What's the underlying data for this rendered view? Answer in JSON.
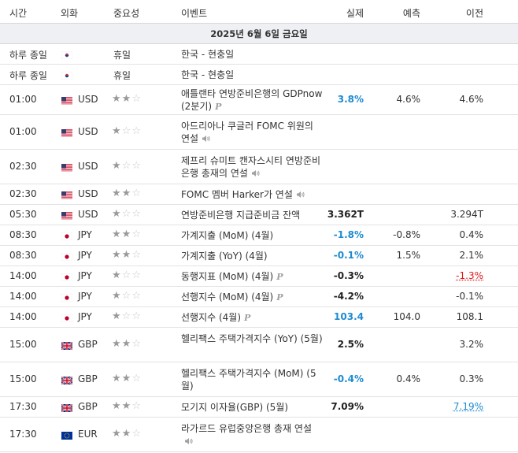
{
  "header": {
    "time": "시간",
    "currency": "외화",
    "importance": "중요성",
    "event": "이벤트",
    "actual": "실제",
    "forecast": "예측",
    "previous": "이전"
  },
  "date_label": "2025년 6월 6일 금요일",
  "rows": [
    {
      "time": "하루 종일",
      "flag": "kr-flag-icon",
      "currency": "",
      "holiday": "휴일",
      "stars": 0,
      "event": "한국 - 현충일",
      "marker": "",
      "actual": "",
      "actual_style": "",
      "forecast": "",
      "previous": "",
      "previous_style": ""
    },
    {
      "time": "하루 종일",
      "flag": "kr-flag-icon",
      "currency": "",
      "holiday": "휴일",
      "stars": 0,
      "event": "한국 - 현충일",
      "marker": "",
      "actual": "",
      "actual_style": "",
      "forecast": "",
      "previous": "",
      "previous_style": ""
    },
    {
      "time": "01:00",
      "flag": "us-flag-icon",
      "currency": "USD",
      "holiday": "",
      "stars": 2,
      "event": "애틀랜타 연방준비은행의 GDPnow (2분기)",
      "marker": "preliminary-icon",
      "actual": "3.8%",
      "actual_style": "up",
      "forecast": "4.6%",
      "previous": "4.6%",
      "previous_style": ""
    },
    {
      "time": "01:00",
      "flag": "us-flag-icon",
      "currency": "USD",
      "holiday": "",
      "stars": 1,
      "event": "아드리아나 쿠글러 FOMC 위원의 연설",
      "marker": "speaker-icon",
      "actual": "",
      "actual_style": "",
      "forecast": "",
      "previous": "",
      "previous_style": ""
    },
    {
      "time": "02:30",
      "flag": "us-flag-icon",
      "currency": "USD",
      "holiday": "",
      "stars": 1,
      "event": "제프리 슈미트 캔자스시티 연방준비은행 총재의 연설",
      "marker": "speaker-icon",
      "actual": "",
      "actual_style": "",
      "forecast": "",
      "previous": "",
      "previous_style": ""
    },
    {
      "time": "02:30",
      "flag": "us-flag-icon",
      "currency": "USD",
      "holiday": "",
      "stars": 2,
      "event": "FOMC 멤버 Harker가 연설",
      "marker": "speaker-icon",
      "actual": "",
      "actual_style": "",
      "forecast": "",
      "previous": "",
      "previous_style": ""
    },
    {
      "time": "05:30",
      "flag": "us-flag-icon",
      "currency": "USD",
      "holiday": "",
      "stars": 1,
      "event": "연방준비은행 지급준비금 잔액",
      "marker": "",
      "actual": "3.362T",
      "actual_style": "",
      "forecast": "",
      "previous": "3.294T",
      "previous_style": ""
    },
    {
      "time": "08:30",
      "flag": "jp-flag-icon",
      "currency": "JPY",
      "holiday": "",
      "stars": 2,
      "event": "가계지출 (MoM) (4월)",
      "marker": "",
      "actual": "-1.8%",
      "actual_style": "up",
      "forecast": "-0.8%",
      "previous": "0.4%",
      "previous_style": ""
    },
    {
      "time": "08:30",
      "flag": "jp-flag-icon",
      "currency": "JPY",
      "holiday": "",
      "stars": 2,
      "event": "가계지출 (YoY) (4월)",
      "marker": "",
      "actual": "-0.1%",
      "actual_style": "up",
      "forecast": "1.5%",
      "previous": "2.1%",
      "previous_style": ""
    },
    {
      "time": "14:00",
      "flag": "jp-flag-icon",
      "currency": "JPY",
      "holiday": "",
      "stars": 1,
      "event": "동행지표 (MoM) (4월)",
      "marker": "preliminary-icon",
      "actual": "-0.3%",
      "actual_style": "",
      "forecast": "",
      "previous": "-1.3%",
      "previous_style": "red"
    },
    {
      "time": "14:00",
      "flag": "jp-flag-icon",
      "currency": "JPY",
      "holiday": "",
      "stars": 1,
      "event": "선행지수 (MoM) (4월)",
      "marker": "preliminary-icon",
      "actual": "-4.2%",
      "actual_style": "",
      "forecast": "",
      "previous": "-0.1%",
      "previous_style": ""
    },
    {
      "time": "14:00",
      "flag": "jp-flag-icon",
      "currency": "JPY",
      "holiday": "",
      "stars": 1,
      "event": "선행지수 (4월)",
      "marker": "preliminary-icon",
      "actual": "103.4",
      "actual_style": "up",
      "forecast": "104.0",
      "previous": "108.1",
      "previous_style": ""
    },
    {
      "time": "15:00",
      "flag": "gb-flag-icon",
      "currency": "GBP",
      "holiday": "",
      "stars": 2,
      "event": "헬리팩스 주택가격지수 (YoY) (5월)",
      "marker": "",
      "actual": "2.5%",
      "actual_style": "",
      "forecast": "",
      "previous": "3.2%",
      "previous_style": ""
    },
    {
      "time": "15:00",
      "flag": "gb-flag-icon",
      "currency": "GBP",
      "holiday": "",
      "stars": 2,
      "event": "헬리팩스 주택가격지수 (MoM) (5월)",
      "marker": "",
      "actual": "-0.4%",
      "actual_style": "up",
      "forecast": "0.4%",
      "previous": "0.3%",
      "previous_style": ""
    },
    {
      "time": "17:30",
      "flag": "gb-flag-icon",
      "currency": "GBP",
      "holiday": "",
      "stars": 2,
      "event": "모기지 이자율(GBP) (5월)",
      "marker": "",
      "actual": "7.09%",
      "actual_style": "",
      "forecast": "",
      "previous": "7.19%",
      "previous_style": "blue"
    },
    {
      "time": "17:30",
      "flag": "eu-flag-icon",
      "currency": "EUR",
      "holiday": "",
      "stars": 2,
      "event": "라가르드 유럽중앙은행 총재 연설",
      "marker": "speaker-icon",
      "actual": "",
      "actual_style": "",
      "forecast": "",
      "previous": "",
      "previous_style": ""
    }
  ],
  "colors": {
    "actual_up": "#1e8bd1",
    "previous_red": "#e01b1b",
    "date_bg": "#eef0f4"
  }
}
